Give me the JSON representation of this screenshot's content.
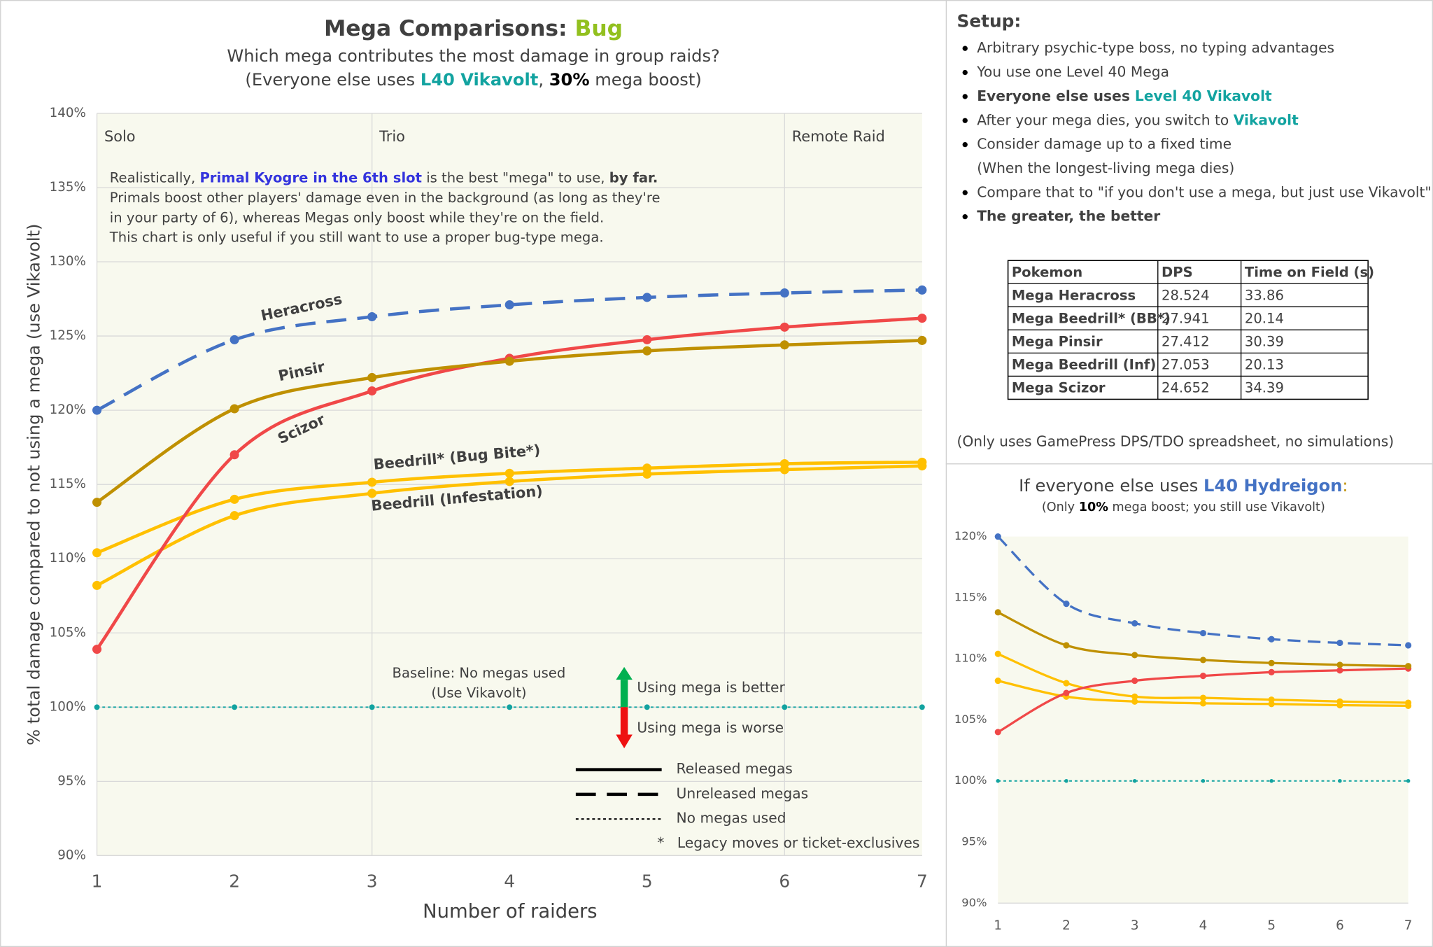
{
  "chart_data": [
    {
      "type": "line",
      "title": [
        {
          "text": "Mega Comparisons: "
        },
        {
          "text": "Bug",
          "color": "#92c01f"
        }
      ],
      "subtitle": [
        [
          {
            "text": "Which mega contributes the most damage in group raids?"
          }
        ],
        [
          {
            "text": "(Everyone else uses "
          },
          {
            "text": "L40 Vikavolt",
            "color": "#12a3a0",
            "bold": true
          },
          {
            "text": ", "
          },
          {
            "text": "30%",
            "color": "#000000",
            "bold": true
          },
          {
            "text": " mega boost)"
          }
        ]
      ],
      "x_label": "Number of raiders",
      "y_label": "% total damage compared to not using a mega (use Vikavolt)",
      "x": [
        1,
        2,
        3,
        4,
        5,
        6,
        7
      ],
      "xlim": [
        1,
        7
      ],
      "xticks": [
        1,
        2,
        3,
        4,
        5,
        6,
        7
      ],
      "ylim": [
        90,
        140
      ],
      "yticks": [
        {
          "value": 90,
          "label": "90%"
        },
        {
          "value": 95,
          "label": "95%"
        },
        {
          "value": 100,
          "label": "100%"
        },
        {
          "value": 105,
          "label": "105%"
        },
        {
          "value": 110,
          "label": "110%"
        },
        {
          "value": 115,
          "label": "115%"
        },
        {
          "value": 120,
          "label": "120%"
        },
        {
          "value": 125,
          "label": "125%"
        },
        {
          "value": 130,
          "label": "130%"
        },
        {
          "value": 135,
          "label": "135%"
        },
        {
          "value": 140,
          "label": "140%"
        }
      ],
      "grid": true,
      "zones": [
        {
          "x": 1,
          "label": "Solo"
        },
        {
          "x": 3,
          "label": "Trio"
        },
        {
          "x": 6,
          "label": "Remote Raid"
        }
      ],
      "series": [
        {
          "name": "Heracross",
          "color": "#4472c4",
          "line_style": "dashed",
          "values": [
            120.0,
            124.75,
            126.3,
            127.1,
            127.6,
            127.9,
            128.1
          ]
        },
        {
          "name": "Pinsir",
          "color": "#bf9000",
          "line_style": "solid",
          "values": [
            113.8,
            120.1,
            122.2,
            123.3,
            124.0,
            124.4,
            124.7
          ]
        },
        {
          "name": "Scizor",
          "color": "#f04848",
          "line_style": "solid",
          "values": [
            103.9,
            117.0,
            121.3,
            123.5,
            124.75,
            125.6,
            126.2
          ]
        },
        {
          "name": "Beedrill* (Bug Bite*)",
          "color": "#ffc000",
          "line_style": "solid",
          "values": [
            110.4,
            114.0,
            115.15,
            115.75,
            116.1,
            116.4,
            116.5
          ]
        },
        {
          "name": "Beedrill (Infestation)",
          "color": "#ffc000",
          "line_style": "solid",
          "values": [
            108.2,
            112.9,
            114.4,
            115.2,
            115.7,
            116.0,
            116.25
          ]
        },
        {
          "name": "Baseline: No megas used",
          "subname": "(Use Vikavolt)",
          "color": "#12a3a0",
          "line_style": "dotted",
          "values": [
            100,
            100,
            100,
            100,
            100,
            100,
            100
          ]
        }
      ],
      "annotation": [
        [
          {
            "text": "Realistically, "
          },
          {
            "text": "Primal Kyogre in the 6th slot",
            "color": "#3333dd",
            "bold": true
          },
          {
            "text": " is the best \"mega\" to use, "
          },
          {
            "text": "by far.",
            "bold": true
          }
        ],
        [
          {
            "text": "Primals boost other players' damage even in the background (as long as they're"
          }
        ],
        [
          {
            "text": "in your party of 6), whereas Megas only boost while they're on the field."
          }
        ],
        [
          {
            "text": "This chart is only useful if you still want to use a proper bug-type mega."
          }
        ]
      ],
      "arrows": [
        {
          "text": "Using mega is better",
          "color": "#00b050"
        },
        {
          "text": "Using mega is worse",
          "color": "#ee1111"
        }
      ],
      "line_legend": [
        {
          "line_style": "solid",
          "label": "Released megas"
        },
        {
          "line_style": "dashed",
          "label": "Unreleased megas"
        },
        {
          "line_style": "dotted",
          "label": "No megas used"
        }
      ],
      "footnote": {
        "symbol": "*",
        "label": "Legacy moves or ticket-exclusives"
      }
    },
    {
      "type": "line",
      "title": [
        {
          "text": "If everyone else uses "
        },
        {
          "text": "L40 Hydreigon",
          "color": "#4472c4",
          "bold": true
        },
        {
          "text": ":",
          "color": "#bf9000"
        }
      ],
      "subtitle": [
        [
          {
            "text": "(Only "
          },
          {
            "text": "10%",
            "color": "#000000",
            "bold": true
          },
          {
            "text": " mega boost; you still use Vikavolt)"
          }
        ]
      ],
      "x": [
        1,
        2,
        3,
        4,
        5,
        6,
        7
      ],
      "xlim": [
        1,
        7
      ],
      "xticks": [
        1,
        2,
        3,
        4,
        5,
        6,
        7
      ],
      "ylim": [
        90,
        120
      ],
      "yticks": [
        {
          "value": 90,
          "label": "90%"
        },
        {
          "value": 95,
          "label": "95%"
        },
        {
          "value": 100,
          "label": "100%"
        },
        {
          "value": 105,
          "label": "105%"
        },
        {
          "value": 110,
          "label": "110%"
        },
        {
          "value": 115,
          "label": "115%"
        },
        {
          "value": 120,
          "label": "120%"
        }
      ],
      "grid": false,
      "series": [
        {
          "color": "#4472c4",
          "line_style": "dashed",
          "values": [
            120.0,
            114.5,
            112.9,
            112.1,
            111.6,
            111.3,
            111.1
          ]
        },
        {
          "color": "#bf9000",
          "line_style": "solid",
          "values": [
            113.8,
            111.1,
            110.3,
            109.9,
            109.65,
            109.5,
            109.4
          ]
        },
        {
          "color": "#f04848",
          "line_style": "solid",
          "values": [
            104.0,
            107.2,
            108.2,
            108.6,
            108.9,
            109.05,
            109.2
          ]
        },
        {
          "color": "#ffc000",
          "line_style": "solid",
          "values": [
            110.4,
            108.0,
            106.9,
            106.8,
            106.65,
            106.5,
            106.4
          ]
        },
        {
          "color": "#ffc000",
          "line_style": "solid",
          "values": [
            108.2,
            106.9,
            106.5,
            106.35,
            106.3,
            106.2,
            106.15
          ]
        },
        {
          "color": "#12a3a0",
          "line_style": "dotted",
          "values": [
            100,
            100,
            100,
            100,
            100,
            100,
            100
          ]
        }
      ]
    }
  ],
  "setup": {
    "title": "Setup:",
    "items": [
      [
        [
          {
            "text": "Arbitrary psychic-type boss, no typing advantages"
          }
        ]
      ],
      [
        [
          {
            "text": "You use one Level 40 Mega"
          }
        ]
      ],
      [
        [
          {
            "text": "Everyone else uses ",
            "bold": true
          },
          {
            "text": "Level 40 Vikavolt",
            "color": "#12a3a0",
            "bold": true
          }
        ]
      ],
      [
        [
          {
            "text": "After your mega dies, you switch to "
          },
          {
            "text": "Vikavolt",
            "color": "#12a3a0",
            "bold": true
          }
        ]
      ],
      [
        [
          {
            "text": "Consider damage up to a fixed time"
          }
        ],
        [
          {
            "text": "(When the longest-living mega dies)"
          }
        ]
      ],
      [
        [
          {
            "text": "Compare that to \"if you don't use a mega, but just use Vikavolt\""
          }
        ]
      ],
      [
        [
          {
            "text": "The greater, the better",
            "bold": true
          }
        ]
      ]
    ],
    "footnote": "(Only uses GamePress DPS/TDO spreadsheet, no simulations)"
  },
  "table": {
    "header": [
      "Pokemon",
      "DPS",
      "Time on Field (s)"
    ],
    "rows": [
      {
        "color": "#4472c4",
        "cells": [
          "Mega Heracross",
          "28.524",
          "33.86"
        ]
      },
      {
        "color": "#ffc000",
        "cells": [
          "Mega Beedrill* (BB*)",
          "27.941",
          "20.14"
        ]
      },
      {
        "color": "#bf9000",
        "cells": [
          "Mega Pinsir",
          "27.412",
          "30.39"
        ]
      },
      {
        "color": "#ffc000",
        "cells": [
          "Mega Beedrill (Inf)",
          "27.053",
          "20.13"
        ]
      },
      {
        "color": "#ee1111",
        "cells": [
          "Mega Scizor",
          "24.652",
          "34.39"
        ]
      }
    ]
  }
}
